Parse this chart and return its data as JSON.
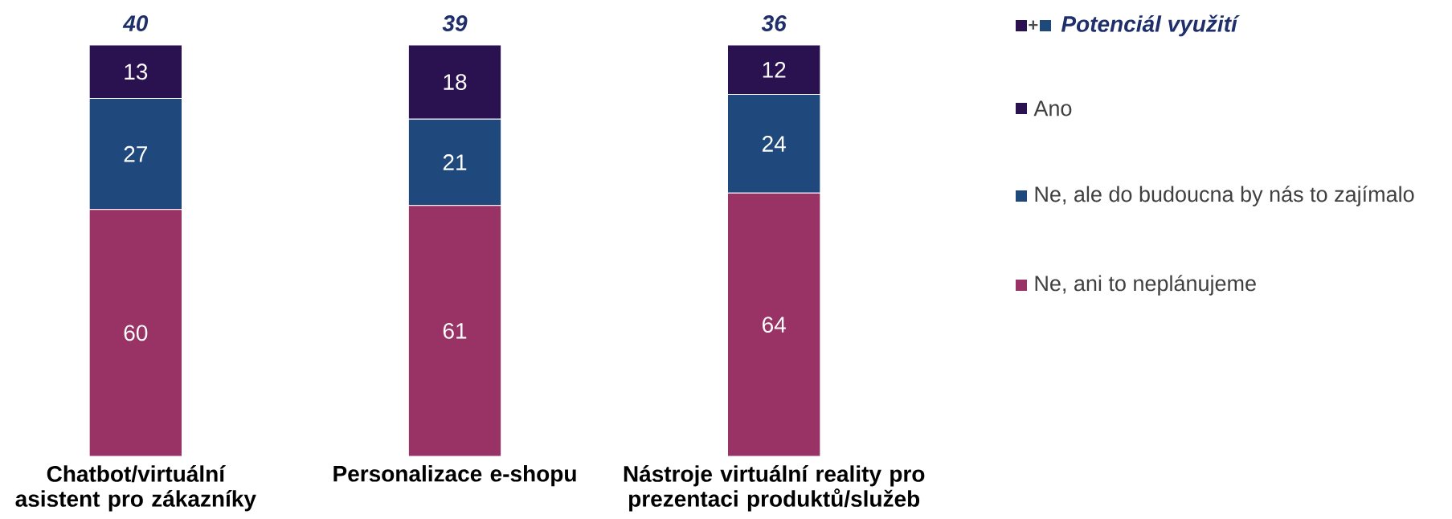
{
  "chart_data": {
    "type": "bar",
    "stacked": true,
    "data_labels": true,
    "legend": "right",
    "legend_title": "Potenciál využití",
    "categories": [
      "Chatbot/virtuální asistent pro zákazníky",
      "Personalizace e-shopu",
      "Nástroje virtuální reality pro prezentaci produktů/služeb"
    ],
    "series": [
      {
        "name": "Ne, ani to neplánujeme",
        "color": "#993366",
        "values": [
          60,
          61,
          64
        ]
      },
      {
        "name": "Ne, ale do budoucna by nás to zajímalo",
        "color": "#1f497d",
        "values": [
          27,
          21,
          24
        ]
      },
      {
        "name": "Ano",
        "color": "#2a1150",
        "values": [
          13,
          18,
          12
        ]
      }
    ],
    "annotations": [
      "+",
      {
        "text": "40",
        "x": "Chatbot/virtuální asistent pro zákazníky",
        "y": 100
      },
      {
        "text": "39",
        "x": "Personalizace e-shopu",
        "y": 100
      },
      {
        "text": "36",
        "x": "Nástroje virtuální reality pro prezentaci produktů/služeb",
        "y": 100
      }
    ]
  }
}
